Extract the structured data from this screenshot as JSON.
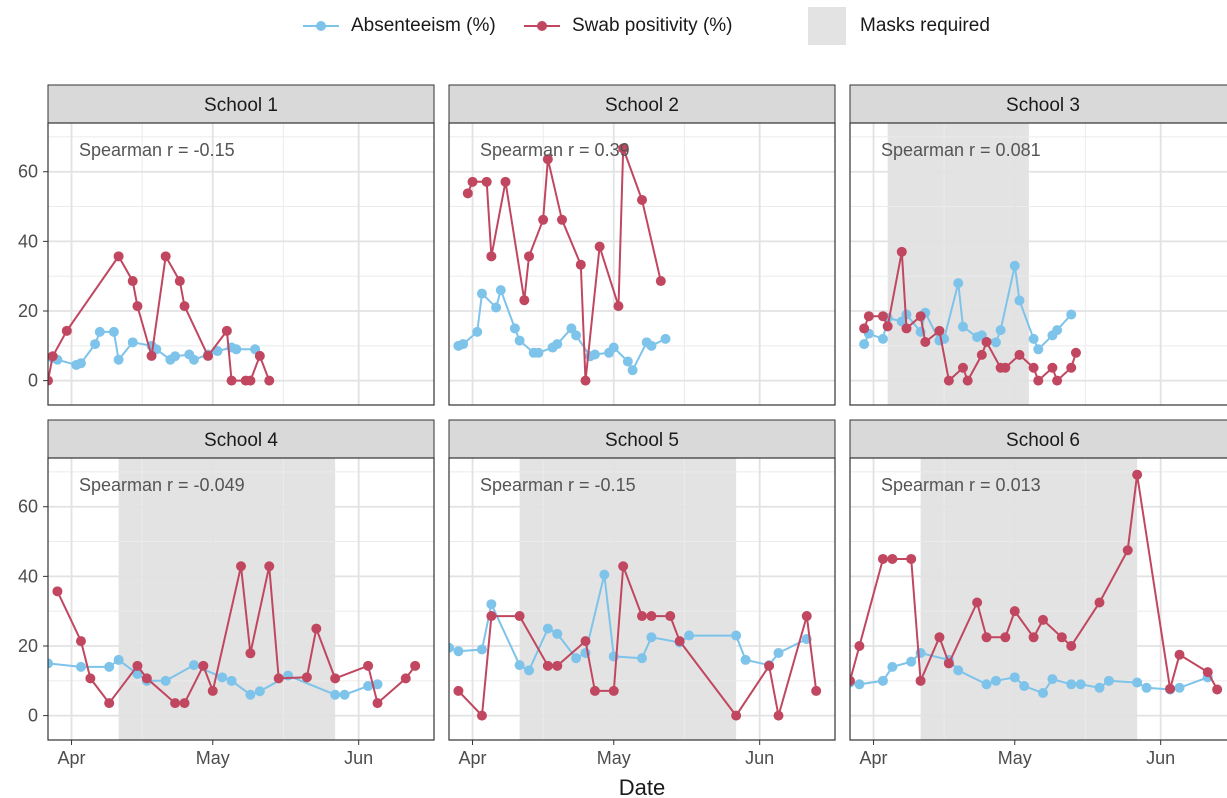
{
  "chart_data": {
    "type": "line",
    "xlabel": "Date",
    "x_ticks": [
      "Apr",
      "May",
      "Jun"
    ],
    "y_ticks": [
      0,
      20,
      40,
      60
    ],
    "ylim": [
      -7,
      74
    ],
    "xlim": [
      "2022-03-27",
      "2022-06-17"
    ],
    "grid": true,
    "legend": {
      "position": "top",
      "series": [
        {
          "label": "Absenteeism (%)",
          "color": "#7ec3ea"
        },
        {
          "label": "Swab positivity (%)",
          "color": "#c0475f"
        }
      ],
      "band_label": "Masks required",
      "band_color": "#e3e3e3"
    },
    "panels": [
      {
        "title": "School 1",
        "annotation": "Spearman r = -0.15",
        "masks": null,
        "absenteeism": [
          [
            "2022-03-28",
            6.5
          ],
          [
            "2022-03-29",
            6
          ],
          [
            "2022-04-02",
            4.5
          ],
          [
            "2022-04-03",
            5
          ],
          [
            "2022-04-06",
            10.5
          ],
          [
            "2022-04-07",
            14
          ],
          [
            "2022-04-10",
            14
          ],
          [
            "2022-04-11",
            6
          ],
          [
            "2022-04-14",
            11
          ],
          [
            "2022-04-18",
            10
          ],
          [
            "2022-04-19",
            9
          ],
          [
            "2022-04-22",
            6
          ],
          [
            "2022-04-23",
            7
          ],
          [
            "2022-04-26",
            7.5
          ],
          [
            "2022-04-27",
            6
          ],
          [
            "2022-04-30",
            7.5
          ],
          [
            "2022-05-02",
            8.5
          ],
          [
            "2022-05-05",
            9.5
          ],
          [
            "2022-05-06",
            9
          ],
          [
            "2022-05-10",
            9
          ]
        ],
        "positivity": [
          [
            "2022-03-27",
            0
          ],
          [
            "2022-03-28",
            7
          ],
          [
            "2022-03-31",
            14.3
          ],
          [
            "2022-04-11",
            35.7
          ],
          [
            "2022-04-14",
            28.6
          ],
          [
            "2022-04-15",
            21.4
          ],
          [
            "2022-04-18",
            7.1
          ],
          [
            "2022-04-21",
            35.7
          ],
          [
            "2022-04-24",
            28.6
          ],
          [
            "2022-04-25",
            21.4
          ],
          [
            "2022-04-30",
            7.1
          ],
          [
            "2022-05-04",
            14.3
          ],
          [
            "2022-05-05",
            0
          ],
          [
            "2022-05-08",
            0
          ],
          [
            "2022-05-09",
            0
          ],
          [
            "2022-05-11",
            7.1
          ],
          [
            "2022-05-13",
            0
          ]
        ]
      },
      {
        "title": "School 2",
        "annotation": "Spearman r = 0.39",
        "masks": null,
        "absenteeism": [
          [
            "2022-03-29",
            10
          ],
          [
            "2022-03-30",
            10.5
          ],
          [
            "2022-04-02",
            14
          ],
          [
            "2022-04-03",
            25
          ],
          [
            "2022-04-06",
            21
          ],
          [
            "2022-04-07",
            26
          ],
          [
            "2022-04-10",
            15
          ],
          [
            "2022-04-11",
            11.5
          ],
          [
            "2022-04-14",
            8
          ],
          [
            "2022-04-15",
            8
          ],
          [
            "2022-04-18",
            9.5
          ],
          [
            "2022-04-19",
            10.5
          ],
          [
            "2022-04-22",
            15
          ],
          [
            "2022-04-23",
            13
          ],
          [
            "2022-04-26",
            7
          ],
          [
            "2022-04-27",
            7.5
          ],
          [
            "2022-04-30",
            8
          ],
          [
            "2022-05-01",
            9.5
          ],
          [
            "2022-05-04",
            5.5
          ],
          [
            "2022-05-05",
            3
          ],
          [
            "2022-05-08",
            11
          ],
          [
            "2022-05-09",
            10
          ],
          [
            "2022-05-12",
            12
          ]
        ],
        "positivity": [
          [
            "2022-03-31",
            53.8
          ],
          [
            "2022-04-01",
            57.1
          ],
          [
            "2022-04-04",
            57.1
          ],
          [
            "2022-04-05",
            35.7
          ],
          [
            "2022-04-08",
            57.1
          ],
          [
            "2022-04-12",
            23.1
          ],
          [
            "2022-04-13",
            35.7
          ],
          [
            "2022-04-16",
            46.2
          ],
          [
            "2022-04-17",
            63.6
          ],
          [
            "2022-04-20",
            46.2
          ],
          [
            "2022-04-24",
            33.3
          ],
          [
            "2022-04-25",
            0
          ],
          [
            "2022-04-28",
            38.5
          ],
          [
            "2022-05-02",
            21.4
          ],
          [
            "2022-05-03",
            66.7
          ],
          [
            "2022-05-07",
            51.9
          ],
          [
            "2022-05-11",
            28.6
          ]
        ]
      },
      {
        "title": "School 3",
        "annotation": "Spearman r = 0.081",
        "masks": [
          "2022-04-04",
          "2022-05-04"
        ],
        "absenteeism": [
          [
            "2022-03-30",
            10.5
          ],
          [
            "2022-03-31",
            13.5
          ],
          [
            "2022-04-03",
            12
          ],
          [
            "2022-04-04",
            18
          ],
          [
            "2022-04-07",
            17
          ],
          [
            "2022-04-08",
            19
          ],
          [
            "2022-04-11",
            14
          ],
          [
            "2022-04-12",
            19.5
          ],
          [
            "2022-04-15",
            11.5
          ],
          [
            "2022-04-16",
            12
          ],
          [
            "2022-04-19",
            28
          ],
          [
            "2022-04-20",
            15.5
          ],
          [
            "2022-04-23",
            12.5
          ],
          [
            "2022-04-24",
            13
          ],
          [
            "2022-04-27",
            11
          ],
          [
            "2022-04-28",
            14.5
          ],
          [
            "2022-05-01",
            33
          ],
          [
            "2022-05-02",
            23
          ],
          [
            "2022-05-05",
            12
          ],
          [
            "2022-05-06",
            9
          ],
          [
            "2022-05-09",
            13
          ],
          [
            "2022-05-10",
            14.5
          ],
          [
            "2022-05-13",
            19
          ]
        ],
        "positivity": [
          [
            "2022-03-30",
            15
          ],
          [
            "2022-03-31",
            18.5
          ],
          [
            "2022-04-03",
            18.5
          ],
          [
            "2022-04-04",
            15.6
          ],
          [
            "2022-04-07",
            37
          ],
          [
            "2022-04-08",
            15
          ],
          [
            "2022-04-11",
            18.5
          ],
          [
            "2022-04-12",
            11.1
          ],
          [
            "2022-04-15",
            14.3
          ],
          [
            "2022-04-17",
            0
          ],
          [
            "2022-04-20",
            3.7
          ],
          [
            "2022-04-21",
            0
          ],
          [
            "2022-04-24",
            7.4
          ],
          [
            "2022-04-25",
            11.1
          ],
          [
            "2022-04-28",
            3.7
          ],
          [
            "2022-04-29",
            3.7
          ],
          [
            "2022-05-02",
            7.4
          ],
          [
            "2022-05-05",
            3.7
          ],
          [
            "2022-05-06",
            0
          ],
          [
            "2022-05-09",
            3.7
          ],
          [
            "2022-05-10",
            0
          ],
          [
            "2022-05-13",
            3.7
          ],
          [
            "2022-05-14",
            8
          ]
        ]
      },
      {
        "title": "School 4",
        "annotation": "Spearman r = -0.049",
        "masks": [
          "2022-04-11",
          "2022-05-27"
        ],
        "absenteeism": [
          [
            "2022-03-27",
            15
          ],
          [
            "2022-04-03",
            14
          ],
          [
            "2022-04-09",
            14
          ],
          [
            "2022-04-11",
            16
          ],
          [
            "2022-04-15",
            12
          ],
          [
            "2022-04-17",
            10
          ],
          [
            "2022-04-21",
            10
          ],
          [
            "2022-04-27",
            14.5
          ],
          [
            "2022-05-03",
            11
          ],
          [
            "2022-05-05",
            10
          ],
          [
            "2022-05-09",
            6
          ],
          [
            "2022-05-11",
            7
          ],
          [
            "2022-05-17",
            11.5
          ],
          [
            "2022-05-27",
            6
          ],
          [
            "2022-05-29",
            6
          ],
          [
            "2022-06-03",
            8.5
          ],
          [
            "2022-06-05",
            9
          ]
        ],
        "positivity": [
          [
            "2022-03-29",
            35.7
          ],
          [
            "2022-04-03",
            21.4
          ],
          [
            "2022-04-05",
            10.7
          ],
          [
            "2022-04-09",
            3.6
          ],
          [
            "2022-04-15",
            14.3
          ],
          [
            "2022-04-17",
            10.7
          ],
          [
            "2022-04-23",
            3.6
          ],
          [
            "2022-04-25",
            3.6
          ],
          [
            "2022-04-29",
            14.3
          ],
          [
            "2022-05-01",
            7.1
          ],
          [
            "2022-05-07",
            42.9
          ],
          [
            "2022-05-09",
            17.9
          ],
          [
            "2022-05-13",
            42.9
          ],
          [
            "2022-05-15",
            10.7
          ],
          [
            "2022-05-21",
            11
          ],
          [
            "2022-05-23",
            25
          ],
          [
            "2022-05-27",
            10.7
          ],
          [
            "2022-06-03",
            14.3
          ],
          [
            "2022-06-05",
            3.6
          ],
          [
            "2022-06-11",
            10.7
          ],
          [
            "2022-06-13",
            14.3
          ]
        ]
      },
      {
        "title": "School 5",
        "annotation": "Spearman r = -0.15",
        "masks": [
          "2022-04-11",
          "2022-05-27"
        ],
        "absenteeism": [
          [
            "2022-03-27",
            19.5
          ],
          [
            "2022-03-29",
            18.5
          ],
          [
            "2022-04-03",
            19
          ],
          [
            "2022-04-05",
            32
          ],
          [
            "2022-04-11",
            14.5
          ],
          [
            "2022-04-13",
            13
          ],
          [
            "2022-04-17",
            25
          ],
          [
            "2022-04-19",
            23.5
          ],
          [
            "2022-04-23",
            16.5
          ],
          [
            "2022-04-25",
            18
          ],
          [
            "2022-04-29",
            40.5
          ],
          [
            "2022-05-01",
            17
          ],
          [
            "2022-05-07",
            16.5
          ],
          [
            "2022-05-09",
            22.5
          ],
          [
            "2022-05-15",
            21
          ],
          [
            "2022-05-17",
            23
          ],
          [
            "2022-05-27",
            23
          ],
          [
            "2022-05-29",
            16
          ],
          [
            "2022-06-03",
            14.5
          ],
          [
            "2022-06-05",
            18
          ],
          [
            "2022-06-11",
            22
          ]
        ],
        "positivity": [
          [
            "2022-03-29",
            7.1
          ],
          [
            "2022-04-03",
            0
          ],
          [
            "2022-04-05",
            28.6
          ],
          [
            "2022-04-11",
            28.6
          ],
          [
            "2022-04-17",
            14.3
          ],
          [
            "2022-04-19",
            14.3
          ],
          [
            "2022-04-25",
            21.4
          ],
          [
            "2022-04-27",
            7.1
          ],
          [
            "2022-05-01",
            7.1
          ],
          [
            "2022-05-03",
            42.9
          ],
          [
            "2022-05-07",
            28.6
          ],
          [
            "2022-05-09",
            28.6
          ],
          [
            "2022-05-13",
            28.6
          ],
          [
            "2022-05-15",
            21.4
          ],
          [
            "2022-05-27",
            0
          ],
          [
            "2022-06-03",
            14.3
          ],
          [
            "2022-06-05",
            0
          ],
          [
            "2022-06-11",
            28.6
          ],
          [
            "2022-06-13",
            7.1
          ]
        ]
      },
      {
        "title": "School 6",
        "annotation": "Spearman r = 0.013",
        "masks": [
          "2022-04-11",
          "2022-05-27"
        ],
        "absenteeism": [
          [
            "2022-03-27",
            9.5
          ],
          [
            "2022-03-29",
            9
          ],
          [
            "2022-04-03",
            10
          ],
          [
            "2022-04-05",
            14
          ],
          [
            "2022-04-09",
            15.5
          ],
          [
            "2022-04-11",
            18
          ],
          [
            "2022-04-17",
            16
          ],
          [
            "2022-04-19",
            13
          ],
          [
            "2022-04-25",
            9
          ],
          [
            "2022-04-27",
            10
          ],
          [
            "2022-05-01",
            11
          ],
          [
            "2022-05-03",
            8.5
          ],
          [
            "2022-05-07",
            6.5
          ],
          [
            "2022-05-09",
            10.5
          ],
          [
            "2022-05-13",
            9
          ],
          [
            "2022-05-15",
            9
          ],
          [
            "2022-05-19",
            8
          ],
          [
            "2022-05-21",
            10
          ],
          [
            "2022-05-27",
            9.5
          ],
          [
            "2022-05-29",
            8
          ],
          [
            "2022-06-03",
            7.5
          ],
          [
            "2022-06-05",
            8
          ],
          [
            "2022-06-11",
            11
          ]
        ],
        "positivity": [
          [
            "2022-03-27",
            10
          ],
          [
            "2022-03-29",
            20
          ],
          [
            "2022-04-03",
            45
          ],
          [
            "2022-04-05",
            45
          ],
          [
            "2022-04-09",
            45
          ],
          [
            "2022-04-11",
            10
          ],
          [
            "2022-04-15",
            22.5
          ],
          [
            "2022-04-17",
            15
          ],
          [
            "2022-04-23",
            32.5
          ],
          [
            "2022-04-25",
            22.5
          ],
          [
            "2022-04-29",
            22.5
          ],
          [
            "2022-05-01",
            30
          ],
          [
            "2022-05-05",
            22.5
          ],
          [
            "2022-05-07",
            27.5
          ],
          [
            "2022-05-11",
            22.5
          ],
          [
            "2022-05-13",
            20
          ],
          [
            "2022-05-19",
            32.5
          ],
          [
            "2022-05-25",
            47.5
          ],
          [
            "2022-05-27",
            69.2
          ],
          [
            "2022-06-03",
            7.7
          ],
          [
            "2022-06-05",
            17.5
          ],
          [
            "2022-06-11",
            12.5
          ],
          [
            "2022-06-13",
            7.5
          ]
        ]
      }
    ]
  }
}
